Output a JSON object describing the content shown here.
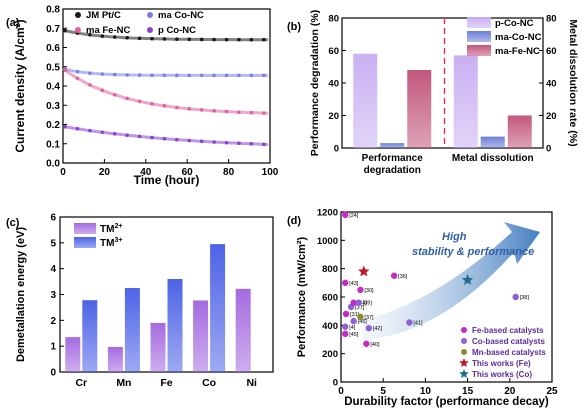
{
  "chart_data": [
    {
      "panel": "(a)",
      "type": "scatter",
      "xlabel": "Time (hour)",
      "ylabel": "Current density (A/cm²)",
      "xlim": [
        0,
        100
      ],
      "ylim": [
        0.0,
        0.8
      ],
      "xticks": [
        "0",
        "20",
        "40",
        "60",
        "80",
        "100"
      ],
      "yticks": [
        "0.0",
        "0.1",
        "0.2",
        "0.3",
        "0.4",
        "0.5",
        "0.6",
        "0.7",
        "0.8"
      ],
      "legend": "top",
      "series": [
        {
          "name": "JM Pt/C",
          "color": "#1a1a1a",
          "start": 0.69,
          "end": 0.64,
          "tau": 20
        },
        {
          "name": "ma Co-NC",
          "color": "#7b7fe8",
          "start": 0.49,
          "end": 0.455,
          "tau": 12
        },
        {
          "name": "ma Fe-NC",
          "color": "#e0609e",
          "start": 0.49,
          "end": 0.25,
          "tau": 30
        },
        {
          "name": "p Co-NC",
          "color": "#8a3fd1",
          "start": 0.19,
          "end": 0.07,
          "tau": 65
        }
      ]
    },
    {
      "panel": "(b)",
      "type": "bar",
      "categories": [
        "Performance degradation",
        "Metal dissolution"
      ],
      "category_lines": [
        [
          "Performance",
          "degradation"
        ],
        [
          "Metal dissolution"
        ]
      ],
      "ylabel_left": "Performance degradation (%)",
      "ylabel_right": "Metal dissolution rate (%)",
      "ylim": [
        0,
        80
      ],
      "yticks": [
        "0",
        "20",
        "40",
        "60",
        "80"
      ],
      "legend": "top-right",
      "series": [
        {
          "name": "p-Co-NC",
          "color": "#c9b0f2",
          "values": [
            58,
            57
          ]
        },
        {
          "name": "ma-Co-NC",
          "color": "#6f7fd8",
          "values": [
            3,
            7
          ]
        },
        {
          "name": "ma-Fe-NC",
          "color": "#c2577e",
          "values": [
            48,
            20
          ]
        }
      ]
    },
    {
      "panel": "(c)",
      "type": "bar",
      "ylabel": "Demetallation energy (eV)",
      "categories": [
        "Cr",
        "Mn",
        "Fe",
        "Co",
        "Ni"
      ],
      "ylim": [
        0,
        6
      ],
      "yticks": [
        "0",
        "1",
        "2",
        "3",
        "4",
        "5",
        "6"
      ],
      "legend": "top-left",
      "series": [
        {
          "name": "TM",
          "sup": "2+",
          "color": "#a56be0",
          "values": [
            1.35,
            0.97,
            1.9,
            2.77,
            3.22
          ]
        },
        {
          "name": "TM",
          "sup": "3+",
          "color": "#4d63e6",
          "values": [
            2.78,
            3.25,
            3.6,
            4.95,
            null
          ]
        }
      ]
    },
    {
      "panel": "(d)",
      "type": "scatter",
      "xlabel": "Durability factor (performance decay)",
      "ylabel": "Performance (mW/cm²)",
      "xlim": [
        0,
        25
      ],
      "ylim": [
        0,
        1200
      ],
      "xticks": [
        "0",
        "5",
        "10",
        "15",
        "20",
        "25"
      ],
      "yticks": [
        "0",
        "200",
        "400",
        "600",
        "800",
        "1000",
        "1200"
      ],
      "annotation": [
        "High",
        "stability & performance"
      ],
      "legend": "bottom-right",
      "legend_entries": [
        {
          "label": "Fe-based catalysts",
          "color": "#c42bc4",
          "marker": "circle"
        },
        {
          "label": "Co-based catalysts",
          "color": "#8e5fd6",
          "marker": "circle"
        },
        {
          "label": "Mn-based catalysts",
          "color": "#8a8a32",
          "marker": "circle"
        },
        {
          "label": "This works (Fe)",
          "color": "#c0182a",
          "marker": "star"
        },
        {
          "label": "This works (Co)",
          "color": "#1f6f8f",
          "marker": "star"
        }
      ],
      "points": [
        {
          "x": 0.5,
          "y": 1180,
          "group": 0,
          "label": "[24]"
        },
        {
          "x": 0.5,
          "y": 700,
          "group": 0,
          "label": "[43]"
        },
        {
          "x": 1.2,
          "y": 530,
          "group": 1,
          "label": "[37]"
        },
        {
          "x": 1.5,
          "y": 560,
          "group": 0,
          "label": "[44]"
        },
        {
          "x": 2.3,
          "y": 650,
          "group": 0,
          "label": "[30]"
        },
        {
          "x": 2.1,
          "y": 560,
          "group": 1,
          "label": "[39]"
        },
        {
          "x": 0.6,
          "y": 480,
          "group": 0,
          "label": "[31]"
        },
        {
          "x": 1.5,
          "y": 430,
          "group": 1,
          "label": "[45]"
        },
        {
          "x": 2.3,
          "y": 460,
          "group": 2,
          "label": "[37]"
        },
        {
          "x": 0.5,
          "y": 390,
          "group": 1,
          "label": "[4]"
        },
        {
          "x": 3.3,
          "y": 380,
          "group": 1,
          "label": "[42]"
        },
        {
          "x": 0.5,
          "y": 340,
          "group": 0,
          "label": "[45]"
        },
        {
          "x": 3.0,
          "y": 270,
          "group": 0,
          "label": "[40]"
        },
        {
          "x": 6.3,
          "y": 750,
          "group": 0,
          "label": "[36]"
        },
        {
          "x": 8.1,
          "y": 420,
          "group": 1,
          "label": "[41]"
        },
        {
          "x": 20.7,
          "y": 600,
          "group": 1,
          "label": "[38]"
        },
        {
          "x": 2.7,
          "y": 780,
          "group": 3,
          "label": ""
        },
        {
          "x": 15.0,
          "y": 720,
          "group": 4,
          "label": ""
        }
      ]
    }
  ]
}
